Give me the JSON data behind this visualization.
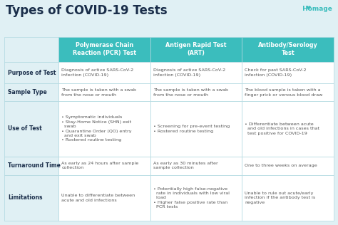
{
  "title": "Types of COVID-19 Tests",
  "bg_color": "#e0f0f4",
  "header_color": "#3bbdbd",
  "header_text_color": "#ffffff",
  "row_label_color": "#1a2e4a",
  "cell_text_color": "#555555",
  "border_color": "#b0d8e0",
  "cell_bg": "#ffffff",
  "label_bg": "#e0f0f4",
  "logo_text": " Homage",
  "logo_color": "#3bbdbd",
  "col_headers": [
    "Polymerase Chain\nReaction (PCR) Test",
    "Antigen Rapid Test\n(ART)",
    "Antibody/Serology\nTest"
  ],
  "row_labels": [
    "Purpose of Test",
    "Sample Type",
    "Use of Test",
    "Turnaround Time",
    "Limitations"
  ],
  "cells": [
    [
      "Diagnosis of active SARS-CoV-2\ninfection (COVID-19)",
      "Diagnosis of active SARS-CoV-2\ninfection (COVID-19)",
      "Check for past SARS-CoV-2\ninfection (COVID-19)"
    ],
    [
      "The sample is taken with a swab\nfrom the nose or mouth",
      "The sample is taken with a swab\nfrom the nose or mouth",
      "The blood sample is taken with a\nfinger prick or venous blood draw"
    ],
    [
      "• Symptomatic individuals\n• Stay-Home Notice (SHN) exit\n  swab\n• Quarantine Order (QO) entry\n  and exit swab\n• Rostered routine testing",
      "• Screening for pre-event testing\n• Rostered routine testing",
      "• Differentiate between acute\n  and old infections in cases that\n  test positive for COVID-19"
    ],
    [
      "As early as 24 hours after sample\ncollection",
      "As early as 30 minutes after\nsample collection",
      "One to three weeks on average"
    ],
    [
      "Unable to differentiate between\nacute and old infections",
      "• Potentially high false-negative\n  rate in individuals with low viral\n  load\n• Higher false positive rate than\n  PCR tests",
      "Unable to rule out acute/early\ninfection if the antibody test is\nnegative"
    ]
  ],
  "title_fontsize": 12,
  "header_fontsize": 5.8,
  "label_fontsize": 5.5,
  "cell_fontsize": 4.6,
  "logo_fontsize": 6.5
}
